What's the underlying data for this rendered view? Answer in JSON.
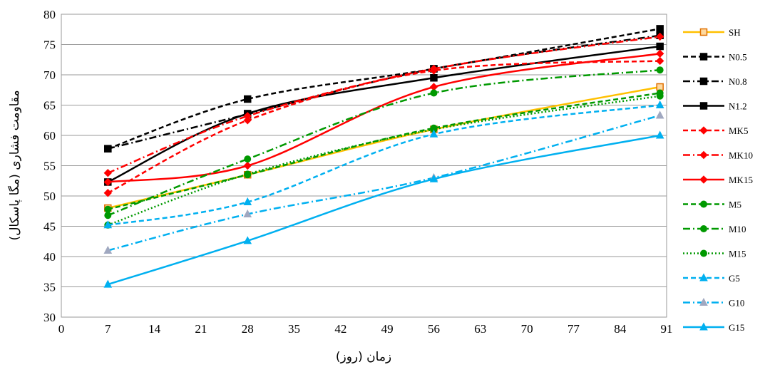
{
  "chart_data": {
    "type": "line",
    "title": "",
    "xlabel": "زمان (روز)",
    "ylabel": "مقاومت فشاری (مگا پاسکال)",
    "xlim": [
      0,
      91
    ],
    "ylim": [
      30,
      80
    ],
    "xticks": [
      0,
      7,
      14,
      21,
      28,
      35,
      42,
      49,
      56,
      63,
      70,
      77,
      84,
      91
    ],
    "yticks": [
      30,
      35,
      40,
      45,
      50,
      55,
      60,
      65,
      70,
      75,
      80
    ],
    "grid": "horizontal",
    "legend": "right",
    "x": [
      7,
      28,
      56,
      90
    ],
    "series": [
      {
        "name": "SH",
        "values": [
          48.0,
          53.5,
          61.0,
          68.0
        ],
        "color": "#FFC000",
        "dash": "solid",
        "marker": "square-open"
      },
      {
        "name": "N0.5",
        "values": [
          57.8,
          66.0,
          71.0,
          77.6
        ],
        "color": "#000000",
        "dash": "dash",
        "marker": "square"
      },
      {
        "name": "N0.8",
        "values": [
          57.8,
          63.5,
          71.0,
          76.5
        ],
        "color": "#000000",
        "dash": "dashdot",
        "marker": "square"
      },
      {
        "name": "N1.2",
        "values": [
          52.3,
          63.6,
          69.5,
          74.7
        ],
        "color": "#000000",
        "dash": "solid",
        "marker": "square"
      },
      {
        "name": "MK5",
        "values": [
          50.5,
          62.5,
          70.7,
          72.3
        ],
        "color": "#FF0000",
        "dash": "dash",
        "marker": "diamond"
      },
      {
        "name": "MK10",
        "values": [
          53.8,
          63.2,
          71.0,
          76.3
        ],
        "color": "#FF0000",
        "dash": "dashdot",
        "marker": "diamond"
      },
      {
        "name": "MK15",
        "values": [
          52.3,
          55.0,
          68.0,
          73.5
        ],
        "color": "#FF0000",
        "dash": "solid",
        "marker": "diamond"
      },
      {
        "name": "M5",
        "values": [
          47.8,
          53.5,
          61.2,
          67.0
        ],
        "color": "#009900",
        "dash": "dash",
        "marker": "circle"
      },
      {
        "name": "M10",
        "values": [
          46.8,
          56.1,
          67.0,
          70.8
        ],
        "color": "#009900",
        "dash": "dashdot",
        "marker": "circle"
      },
      {
        "name": "M15",
        "values": [
          45.2,
          53.6,
          61.0,
          66.5
        ],
        "color": "#009900",
        "dash": "dot",
        "marker": "circle"
      },
      {
        "name": "G5",
        "values": [
          45.2,
          49.0,
          60.2,
          65.0
        ],
        "color": "#00B0F0",
        "dash": "dash",
        "marker": "triangle"
      },
      {
        "name": "G10",
        "values": [
          41.0,
          47.0,
          53.0,
          63.3
        ],
        "color": "#00B0F0",
        "dash": "dashdot",
        "marker": "triangle-gray"
      },
      {
        "name": "G15",
        "values": [
          35.4,
          42.6,
          52.8,
          60.0
        ],
        "color": "#00B0F0",
        "dash": "solid",
        "marker": "triangle"
      }
    ]
  }
}
